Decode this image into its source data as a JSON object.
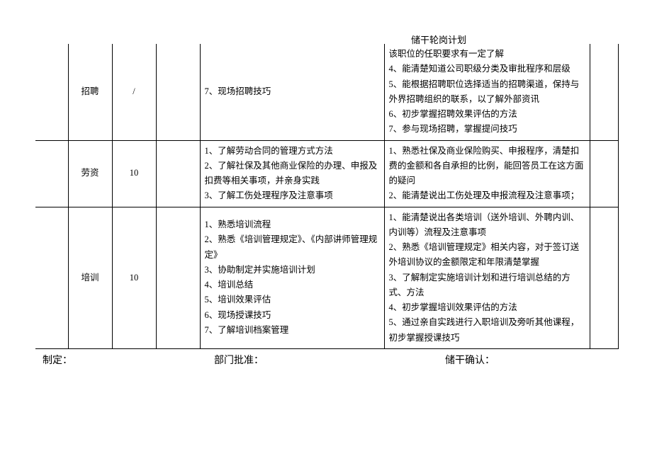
{
  "page_title": "储干轮岗计划",
  "columns": {
    "blank1_width": 46,
    "category_width": 62,
    "number_width": 62,
    "blank2_width": 62,
    "items_width": 260,
    "requirements_width": 290,
    "blank3_width": 40
  },
  "rows": [
    {
      "category": "招聘",
      "number": "/",
      "items": "7、现场招聘技巧",
      "requirements": "该职位的任职要求有一定了解\n4、能清楚知道公司职级分类及审批程序和层级\n5、能根据招聘职位选择适当的招聘渠道，保持与外界招聘组织的联系，以了解外部资讯\n6、初步掌握招聘效果评估的方法\n7、参与现场招聘，掌握提问技巧"
    },
    {
      "category": "劳资",
      "number": "10",
      "items": "1、了解劳动合同的管理方式方法\n2、了解社保及其他商业保险的办理、申报及扣费等相关事项，并亲身实践\n3、了解工伤处理程序及注意事项",
      "requirements": "1、熟悉社保及商业保险购买、申报程序，清楚扣费的金额和各自承担的比例，能回答员工在这方面的疑问\n2、能清楚说出工伤处理及申报流程及注意事项；"
    },
    {
      "category": "培训",
      "number": "10",
      "items": "1、熟悉培训流程\n2、熟悉《培训管理规定》、《内部讲师管理规定》\n3、协助制定并实施培训计划\n4、培训总结\n5、培训效果评估\n6、现场授课技巧\n7、了解培训档案管理",
      "requirements": "1、能清楚说出各类培训（送外培训、外聘内训、内训等）流程及注意事项\n2、熟悉《培训管理规定》相关内容，对于签订送外培训协议的金额限定和年限清楚掌握\n3、了解制定实施培训计划和进行培训总结的方式、方法\n4、初步掌握培训效果评估的方法\n5、通过亲自实践进行入职培训及旁听其他课程，初步掌握授课技巧"
    }
  ],
  "signatures": {
    "maker": "制定：",
    "dept_approve": "部门批准：",
    "cadre_confirm": "储干确认："
  },
  "styling": {
    "background_color": "#ffffff",
    "text_color": "#000000",
    "border_color": "#000000",
    "font_family": "SimSun",
    "body_fontsize": 12.5,
    "title_fontsize": 13,
    "signature_fontsize": 14,
    "line_height": 1.7,
    "outer_left_border": false,
    "outer_top_border_first_row": false
  }
}
